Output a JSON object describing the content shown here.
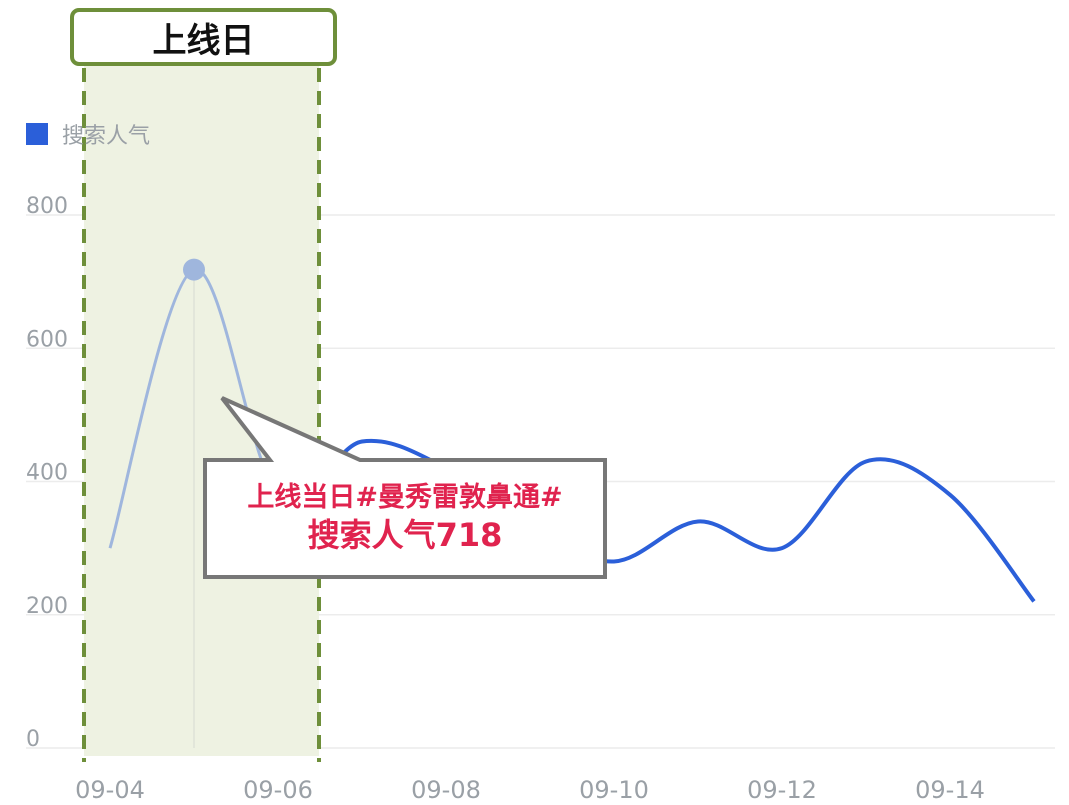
{
  "header": {
    "launch_label": "上线日"
  },
  "legend": {
    "label": "搜索人气",
    "color": "#2b5fd9"
  },
  "callout": {
    "line1": "上线当日#曼秀雷敦鼻通#",
    "line2": "搜索人气718"
  },
  "colors": {
    "series": "#2b5fd9",
    "series_faded": "#9fb6dd",
    "highlight_band": "#eef2e2",
    "highlight_border": "#6e8f3a",
    "callout_text": "#e0234e",
    "gridline": "#ececec",
    "axis_text": "#9aa0a6"
  },
  "chart_data": {
    "type": "line",
    "x": [
      "09-04",
      "09-05",
      "09-06",
      "09-07",
      "09-08",
      "09-09",
      "09-10",
      "09-11",
      "09-12",
      "09-13",
      "09-14",
      "09-15"
    ],
    "x_tick_labels": [
      "09-04",
      "09-06",
      "09-08",
      "09-10",
      "09-12",
      "09-14"
    ],
    "series": [
      {
        "name": "搜索人气",
        "values": [
          300,
          718,
          380,
          460,
          420,
          330,
          280,
          340,
          300,
          430,
          380,
          220
        ]
      }
    ],
    "ylim": [
      0,
      800
    ],
    "y_ticks": [
      0,
      200,
      400,
      600,
      800
    ],
    "y_tick_labels": [
      "0",
      "200",
      "400",
      "600",
      "800"
    ],
    "highlighted_range": [
      "09-04",
      "09-06"
    ],
    "highlighted_point": {
      "x": "09-05",
      "y": 718
    },
    "grid": true,
    "legend_position": "top-left"
  }
}
